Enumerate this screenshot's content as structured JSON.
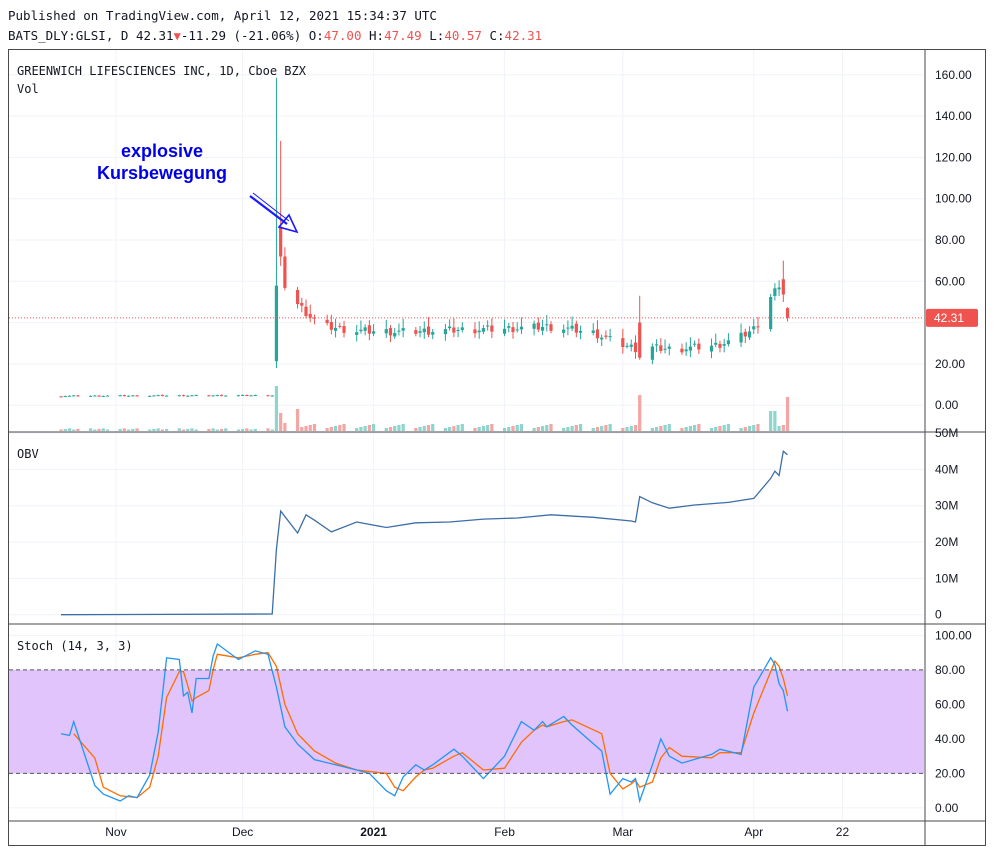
{
  "header": {
    "published": "Published on TradingView.com, April 12, 2021 15:34:37 UTC",
    "symbol": "BATS_DLY:GLSI, D",
    "last": "42.31",
    "change": "-11.29 (-21.06%)",
    "o_label": "O:",
    "o": "47.00",
    "h_label": "H:",
    "h": "47.49",
    "l_label": "L:",
    "l": "40.57",
    "c_label": "C:",
    "c": "42.31"
  },
  "price_pane": {
    "title": "GREENWICH LIFESCIENCES INC, 1D, Cboe BZX",
    "vol_label": "Vol",
    "price_tag": "42.31",
    "annotation_line1": "explosive",
    "annotation_line2": "Kursbewegung"
  },
  "obv_pane": {
    "title": "OBV"
  },
  "stoch_pane": {
    "title": "Stoch (14, 3, 3)"
  },
  "x_axis": {
    "labels": [
      "Nov",
      "Dec",
      "2021",
      "Feb",
      "Mar",
      "Apr",
      "22"
    ]
  },
  "colors": {
    "up": "#26a69a",
    "down": "#ef5350",
    "k_line": "#2196f3",
    "d_line": "#ff6d00",
    "obv_line": "#3c6ea8",
    "band": "#e1c4fb"
  },
  "chart_data": [
    {
      "type": "candlestick",
      "title": "GREENWICH LIFESCIENCES INC, 1D, Cboe BZX",
      "y_ticks": [
        "0.00",
        "20.00",
        "40.00",
        "60.00",
        "80.00",
        "100.00",
        "120.00",
        "140.00",
        "160.00"
      ],
      "ylim": [
        -12,
        172
      ],
      "last_price": 42.31,
      "price_line": "dotted",
      "key_candles": [
        {
          "date": "Dec 9",
          "open": 21.3,
          "high": 158.5,
          "low": 18.0,
          "close": 57.9
        },
        {
          "date": "Dec 10",
          "open": 86.0,
          "high": 128.0,
          "low": 67.5,
          "close": 72.0
        },
        {
          "date": "Mar 5",
          "open": 40.0,
          "high": 53.0,
          "low": 22.0,
          "close": 23.0
        },
        {
          "date": "Apr 8",
          "open": 61.0,
          "high": 70.0,
          "low": 50.0,
          "close": 53.6
        },
        {
          "date": "Apr 9",
          "open": 47.0,
          "high": 47.49,
          "low": 40.57,
          "close": 42.31
        }
      ]
    },
    {
      "type": "bar",
      "title": "Vol",
      "note": "volume histogram overlaid at bottom of price pane"
    },
    {
      "type": "line",
      "title": "OBV",
      "y_ticks": [
        "0",
        "10M",
        "20M",
        "30M",
        "40M",
        "50M"
      ],
      "ylim": [
        -2,
        50
      ],
      "points": [
        [
          "Oct 19",
          0
        ],
        [
          "Dec 8",
          0.2
        ],
        [
          "Dec 9",
          18
        ],
        [
          "Dec 10",
          28.5
        ],
        [
          "Dec 14",
          22.5
        ],
        [
          "Dec 16",
          27.5
        ],
        [
          "Dec 18",
          26
        ],
        [
          "Dec 22",
          22.8
        ],
        [
          "Dec 28",
          25.5
        ],
        [
          "Jan 4",
          24
        ],
        [
          "Jan 11",
          25.3
        ],
        [
          "Jan 19",
          25.5
        ],
        [
          "Jan 27",
          26.3
        ],
        [
          "Feb 4",
          26.6
        ],
        [
          "Feb 12",
          27.5
        ],
        [
          "Feb 22",
          26.8
        ],
        [
          "Mar 3",
          25.8
        ],
        [
          "Mar 4",
          25.5
        ],
        [
          "Mar 5",
          32.5
        ],
        [
          "Mar 8",
          30.8
        ],
        [
          "Mar 12",
          29.3
        ],
        [
          "Mar 18",
          30.2
        ],
        [
          "Mar 26",
          30.9
        ],
        [
          "Apr 1",
          32.0
        ],
        [
          "Apr 5",
          37.5
        ],
        [
          "Apr 6",
          39.5
        ],
        [
          "Apr 7",
          38.3
        ],
        [
          "Apr 8",
          45.0
        ],
        [
          "Apr 9",
          44.0
        ]
      ]
    },
    {
      "type": "line",
      "title": "Stoch (14, 3, 3)",
      "y_ticks": [
        "0.00",
        "20.00",
        "40.00",
        "60.00",
        "80.00",
        "100.00"
      ],
      "ylim": [
        -7,
        106
      ],
      "band": [
        20,
        80
      ],
      "series": [
        {
          "name": "%K",
          "points": [
            [
              "Oct 19",
              43
            ],
            [
              "Oct 21",
              42
            ],
            [
              "Oct 22",
              50
            ],
            [
              "Oct 27",
              13
            ],
            [
              "Oct 29",
              8
            ],
            [
              "Nov 2",
              4
            ],
            [
              "Nov 4",
              7
            ],
            [
              "Nov 6",
              6
            ],
            [
              "Nov 9",
              19
            ],
            [
              "Nov 11",
              44
            ],
            [
              "Nov 13",
              87
            ],
            [
              "Nov 16",
              86
            ],
            [
              "Nov 17",
              65
            ],
            [
              "Nov 18",
              67
            ],
            [
              "Nov 19",
              55
            ],
            [
              "Nov 20",
              75
            ],
            [
              "Nov 23",
              75
            ],
            [
              "Nov 24",
              88
            ],
            [
              "Nov 25",
              95
            ],
            [
              "Nov 30",
              86
            ],
            [
              "Dec 4",
              91
            ],
            [
              "Dec 7",
              89
            ],
            [
              "Dec 9",
              70
            ],
            [
              "Dec 11",
              47
            ],
            [
              "Dec 14",
              37
            ],
            [
              "Dec 18",
              28
            ],
            [
              "Dec 23",
              25
            ],
            [
              "Dec 28",
              22
            ],
            [
              "Dec 31",
              20
            ],
            [
              "Jan 4",
              10
            ],
            [
              "Jan 6",
              7
            ],
            [
              "Jan 8",
              18
            ],
            [
              "Jan 11",
              25
            ],
            [
              "Jan 13",
              22
            ],
            [
              "Jan 15",
              25
            ],
            [
              "Jan 20",
              34
            ],
            [
              "Jan 22",
              30
            ],
            [
              "Jan 27",
              17
            ],
            [
              "Feb 1",
              30
            ],
            [
              "Feb 5",
              50
            ],
            [
              "Feb 8",
              45
            ],
            [
              "Feb 10",
              50
            ],
            [
              "Feb 11",
              47
            ],
            [
              "Feb 15",
              53
            ],
            [
              "Feb 17",
              48
            ],
            [
              "Feb 24",
              33
            ],
            [
              "Feb 26",
              8
            ],
            [
              "Mar 1",
              17
            ],
            [
              "Mar 3",
              15
            ],
            [
              "Mar 4",
              17
            ],
            [
              "Mar 5",
              4
            ],
            [
              "Mar 8",
              25
            ],
            [
              "Mar 10",
              40
            ],
            [
              "Mar 12",
              30
            ],
            [
              "Mar 15",
              26
            ],
            [
              "Mar 22",
              31
            ],
            [
              "Mar 24",
              34
            ],
            [
              "Mar 29",
              31
            ],
            [
              "Apr 1",
              70
            ],
            [
              "Apr 5",
              87
            ],
            [
              "Apr 6",
              83
            ],
            [
              "Apr 7",
              72
            ],
            [
              "Apr 8",
              68
            ],
            [
              "Apr 9",
              56
            ]
          ]
        },
        {
          "name": "%D",
          "points": [
            [
              "Oct 22",
              43
            ],
            [
              "Oct 27",
              29
            ],
            [
              "Oct 29",
              12
            ],
            [
              "Nov 2",
              7
            ],
            [
              "Nov 6",
              6
            ],
            [
              "Nov 9",
              12
            ],
            [
              "Nov 11",
              30
            ],
            [
              "Nov 13",
              64
            ],
            [
              "Nov 16",
              79
            ],
            [
              "Nov 17",
              79
            ],
            [
              "Nov 18",
              71
            ],
            [
              "Nov 19",
              62
            ],
            [
              "Nov 20",
              64
            ],
            [
              "Nov 23",
              68
            ],
            [
              "Nov 24",
              80
            ],
            [
              "Nov 25",
              89
            ],
            [
              "Nov 30",
              87
            ],
            [
              "Dec 4",
              89
            ],
            [
              "Dec 7",
              90
            ],
            [
              "Dec 9",
              82
            ],
            [
              "Dec 11",
              60
            ],
            [
              "Dec 14",
              43
            ],
            [
              "Dec 18",
              33
            ],
            [
              "Dec 23",
              26
            ],
            [
              "Dec 28",
              22
            ],
            [
              "Jan 4",
              20
            ],
            [
              "Jan 6",
              12
            ],
            [
              "Jan 8",
              10
            ],
            [
              "Jan 11",
              18
            ],
            [
              "Jan 13",
              22
            ],
            [
              "Jan 15",
              23
            ],
            [
              "Jan 20",
              30
            ],
            [
              "Jan 22",
              32
            ],
            [
              "Jan 27",
              22
            ],
            [
              "Feb 1",
              23
            ],
            [
              "Feb 5",
              38
            ],
            [
              "Feb 8",
              45
            ],
            [
              "Feb 10",
              48
            ],
            [
              "Feb 11",
              47
            ],
            [
              "Feb 15",
              50
            ],
            [
              "Feb 17",
              51
            ],
            [
              "Feb 24",
              43
            ],
            [
              "Feb 26",
              20
            ],
            [
              "Mar 1",
              11
            ],
            [
              "Mar 3",
              14
            ],
            [
              "Mar 4",
              16
            ],
            [
              "Mar 5",
              12
            ],
            [
              "Mar 8",
              15
            ],
            [
              "Mar 10",
              29
            ],
            [
              "Mar 12",
              35
            ],
            [
              "Mar 15",
              30
            ],
            [
              "Mar 22",
              29
            ],
            [
              "Mar 24",
              32
            ],
            [
              "Mar 29",
              32
            ],
            [
              "Apr 1",
              55
            ],
            [
              "Apr 5",
              79
            ],
            [
              "Apr 6",
              85
            ],
            [
              "Apr 7",
              82
            ],
            [
              "Apr 8",
              75
            ],
            [
              "Apr 9",
              65
            ]
          ]
        }
      ]
    }
  ]
}
